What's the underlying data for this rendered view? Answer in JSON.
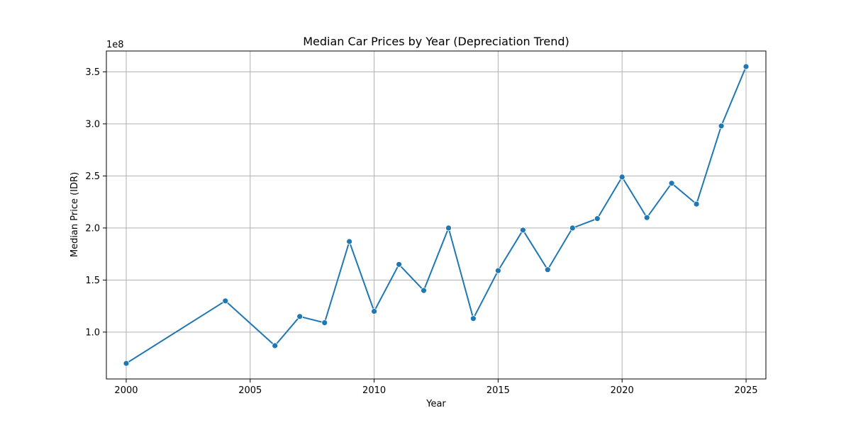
{
  "chart_data": {
    "type": "line",
    "title": "Median Car Prices by Year (Depreciation Trend)",
    "xlabel": "Year",
    "ylabel": "Median Price (IDR)",
    "y_offset_label": "1e8",
    "xlim": [
      1999.2,
      2025.8
    ],
    "ylim": [
      55000000,
      370000000
    ],
    "x_ticks": [
      2000,
      2005,
      2010,
      2015,
      2020,
      2025
    ],
    "y_ticks": [
      100000000,
      150000000,
      200000000,
      250000000,
      300000000,
      350000000
    ],
    "y_tick_labels": [
      "1.0",
      "1.5",
      "2.0",
      "2.5",
      "3.0",
      "3.5"
    ],
    "grid": true,
    "color": "#1f77b4",
    "marker": "circle",
    "series": [
      {
        "x": [
          2000,
          2004,
          2006,
          2007,
          2008,
          2009,
          2010,
          2011,
          2012,
          2013,
          2014,
          2015,
          2016,
          2017,
          2018,
          2019,
          2020,
          2021,
          2022,
          2023,
          2024,
          2025
        ],
        "y": [
          70000000,
          130000000,
          87000000,
          115000000,
          109000000,
          187000000,
          120000000,
          165000000,
          140000000,
          200000000,
          113000000,
          159000000,
          198000000,
          160000000,
          200000000,
          209000000,
          249000000,
          210000000,
          243000000,
          223000000,
          298000000,
          355000000
        ]
      }
    ]
  }
}
